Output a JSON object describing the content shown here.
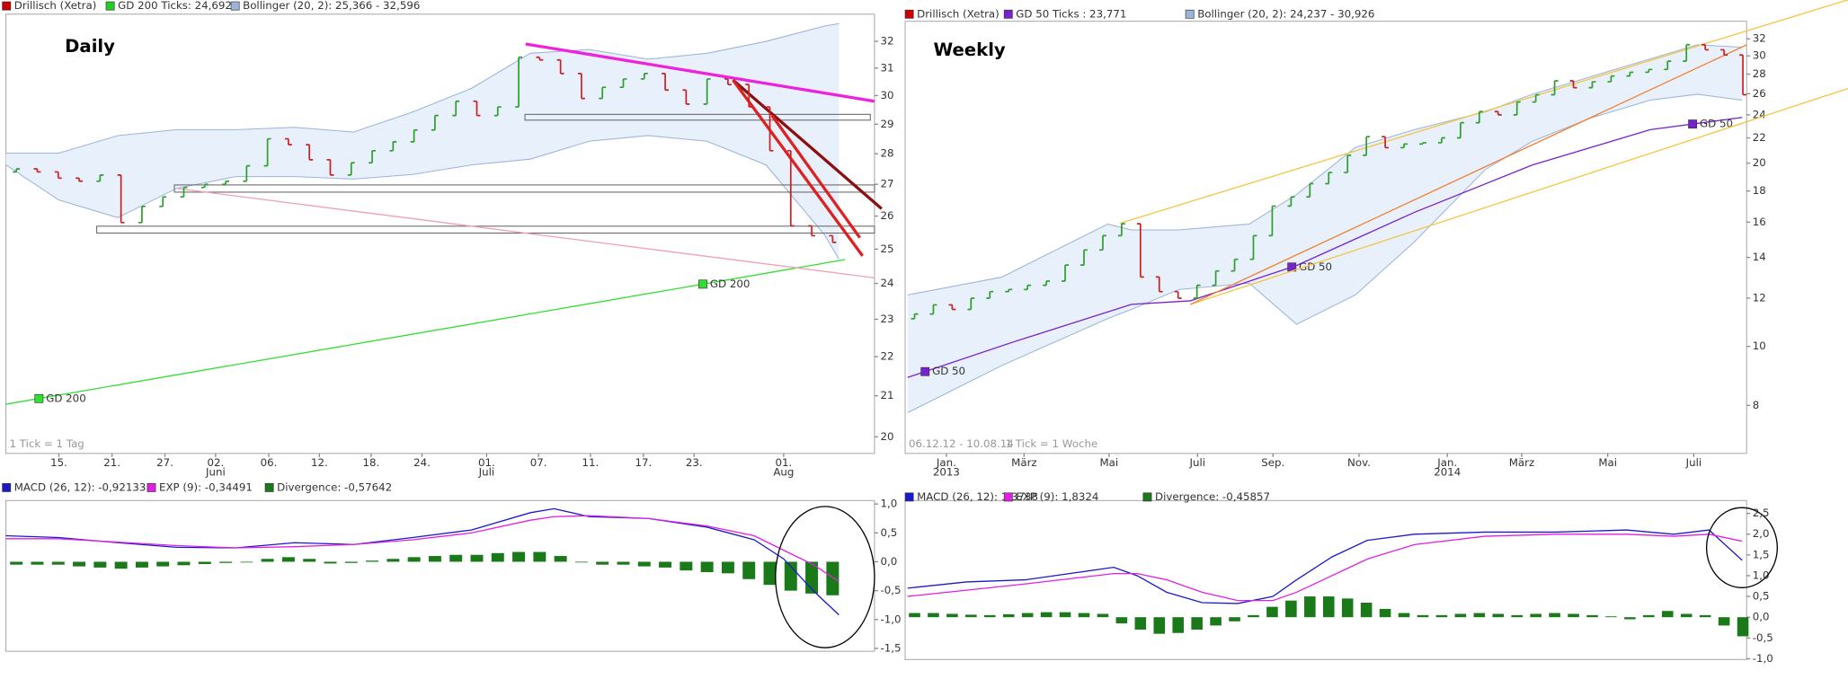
{
  "chart_data": [
    {
      "type": "ohlc",
      "title": "Daily",
      "log": true,
      "legend": [
        {
          "name": "Drillisch (Xetra)",
          "color": "#cc0000"
        },
        {
          "name": "GD 200 Ticks: 24,692",
          "color": "#22cc22"
        },
        {
          "name": "Bollinger (20, 2): 25,366 - 32,596",
          "color": "#9bb5d9"
        }
      ],
      "ylim": [
        19.61,
        33.05
      ],
      "yticks": [
        20,
        21,
        22,
        23,
        24,
        25,
        26,
        27,
        28,
        29,
        30,
        31,
        32
      ],
      "xlim": [
        -0.5,
        41
      ],
      "xticks": [
        {
          "value": 2.03,
          "label": "15."
        },
        {
          "value": 4.57,
          "label": "21."
        },
        {
          "value": 7.1,
          "label": "27."
        },
        {
          "value": 9.52,
          "label": "02.",
          "sublabel": "Juni"
        },
        {
          "value": 12.06,
          "label": "06."
        },
        {
          "value": 14.48,
          "label": "12."
        },
        {
          "value": 16.95,
          "label": "18."
        },
        {
          "value": 19.38,
          "label": "24."
        },
        {
          "value": 22.47,
          "label": "01.",
          "sublabel": "Juli"
        },
        {
          "value": 24.95,
          "label": "07."
        },
        {
          "value": 27.43,
          "label": "11."
        },
        {
          "value": 29.96,
          "label": "17."
        },
        {
          "value": 32.38,
          "label": "23."
        },
        {
          "value": 36.66,
          "label": "01.",
          "sublabel": "Aug"
        }
      ],
      "up_color": "#2e9e2e",
      "down_color": "#cc2020",
      "open": [
        27.4,
        27.5,
        27.4,
        27.2,
        27.1,
        27.3,
        25.8,
        26.3,
        26.6,
        26.9,
        27.0,
        27.1,
        27.6,
        28.5,
        28.3,
        27.8,
        27.3,
        27.7,
        28.1,
        28.4,
        28.8,
        29.3,
        29.8,
        29.3,
        29.6,
        31.4,
        31.3,
        30.8,
        29.9,
        30.3,
        30.6,
        30.8,
        30.2,
        29.7,
        30.6,
        30.4,
        29.6,
        28.1,
        25.7,
        25.4
      ],
      "close": [
        27.5,
        27.4,
        27.2,
        27.1,
        27.3,
        25.8,
        26.3,
        26.6,
        26.9,
        27.0,
        27.1,
        27.6,
        28.5,
        28.3,
        27.8,
        27.3,
        27.7,
        28.1,
        28.4,
        28.8,
        29.3,
        29.8,
        29.3,
        29.6,
        31.4,
        31.3,
        30.8,
        29.9,
        30.3,
        30.6,
        30.8,
        30.2,
        29.7,
        30.6,
        30.4,
        29.6,
        28.1,
        25.7,
        25.4,
        25.2
      ],
      "band": {
        "color": "#9bb5d9",
        "fill": "#e8f0fb",
        "x": [
          -0.5,
          2.03,
          4.85,
          7.66,
          10.48,
          13.3,
          16.11,
          18.93,
          21.74,
          24.56,
          27.37,
          30.19,
          33.0,
          35.82,
          38.63,
          39.3
        ],
        "upper": [
          28.02,
          28.02,
          28.61,
          28.81,
          28.81,
          28.89,
          28.73,
          29.42,
          30.26,
          31.55,
          31.69,
          31.33,
          31.55,
          32.0,
          32.59,
          32.68
        ],
        "lower": [
          27.63,
          26.5,
          25.95,
          26.87,
          27.25,
          27.25,
          27.17,
          27.32,
          27.63,
          27.82,
          28.42,
          28.61,
          28.42,
          27.63,
          25.41,
          24.7
        ]
      },
      "lines": [
        {
          "color": "#33dd33",
          "x": [
            -0.5,
            39.6
          ],
          "values": [
            20.79,
            24.69
          ],
          "labels": [
            {
              "text": "GD 200",
              "x": 1.08
            },
            {
              "text": "GD 200",
              "x": 32.8
            }
          ]
        }
      ],
      "trendlines": [
        {
          "color": "#f0a0b0",
          "width": 1,
          "x": [
            7.66,
            41
          ],
          "values": [
            26.87,
            24.16
          ]
        },
        {
          "color": "#ee22dd",
          "width": 2.5,
          "x": [
            24.33,
            41
          ],
          "values": [
            31.9,
            29.8
          ]
        },
        {
          "color": "#8b1010",
          "width": 2.5,
          "x": [
            34.24,
            41.34
          ],
          "values": [
            30.56,
            26.23
          ]
        },
        {
          "color": "#dd2020",
          "width": 2.5,
          "x": [
            34.24,
            40.43
          ],
          "values": [
            30.56,
            24.8
          ]
        },
        {
          "color": "#dd2020",
          "width": 2.5,
          "x": [
            36.1,
            40.3
          ],
          "values": [
            29.3,
            25.34
          ]
        }
      ],
      "zones": [
        {
          "x": [
            24.3,
            40.8
          ],
          "values": [
            29.14,
            29.34
          ]
        },
        {
          "x": [
            7.55,
            41
          ],
          "values": [
            26.75,
            26.98
          ]
        },
        {
          "x": [
            3.84,
            41
          ],
          "values": [
            25.48,
            25.69
          ]
        }
      ],
      "footnotes": [
        "1 Tick = 1 Tag"
      ]
    },
    {
      "type": "macd",
      "legend": [
        {
          "name": "MACD (26, 12): -0,92133",
          "color": "#1a1acc"
        },
        {
          "name": "EXP (9): -0,34491",
          "color": "#e020e0"
        },
        {
          "name": "Divergence: -0,57642",
          "color": "#1a7a1a"
        }
      ],
      "ylim": [
        -1.55,
        1.06
      ],
      "yticks": [
        {
          "value": 1,
          "label": "1,0"
        },
        {
          "value": 0.5,
          "label": "0,5"
        },
        {
          "value": 0,
          "label": "0,0"
        },
        {
          "value": -0.5,
          "label": "-0,5"
        },
        {
          "value": -1,
          "label": "-1,0"
        },
        {
          "value": -1.5,
          "label": "-1,5"
        }
      ],
      "xlim": [
        -0.5,
        41
      ],
      "series": [
        {
          "color": "#1a1acc",
          "x": [
            -0.5,
            2.03,
            4.85,
            7.66,
            10.48,
            13.3,
            16.11,
            18.93,
            21.74,
            24.56,
            25.69,
            27.37,
            30.19,
            33.0,
            35.25,
            36.66,
            38.07,
            39.3
          ],
          "values": [
            0.45,
            0.42,
            0.33,
            0.25,
            0.24,
            0.33,
            0.3,
            0.42,
            0.55,
            0.85,
            0.92,
            0.78,
            0.75,
            0.6,
            0.38,
            0.05,
            -0.5,
            -0.92
          ]
        },
        {
          "color": "#e020e0",
          "x": [
            -0.5,
            2.03,
            4.85,
            7.66,
            10.48,
            13.3,
            16.11,
            18.93,
            21.74,
            24.56,
            25.69,
            27.37,
            30.19,
            33.0,
            35.25,
            36.66,
            38.07,
            39.3
          ],
          "values": [
            0.4,
            0.4,
            0.34,
            0.28,
            0.24,
            0.26,
            0.3,
            0.38,
            0.5,
            0.72,
            0.78,
            0.8,
            0.75,
            0.62,
            0.45,
            0.2,
            -0.05,
            -0.34
          ]
        }
      ],
      "bar_color": "#1a7a1a",
      "divergence": [
        -0.05,
        -0.05,
        -0.05,
        -0.08,
        -0.1,
        -0.12,
        -0.1,
        -0.08,
        -0.06,
        -0.04,
        -0.02,
        0.0,
        0.05,
        0.08,
        0.05,
        -0.03,
        -0.02,
        0.02,
        0.05,
        0.08,
        0.1,
        0.12,
        0.12,
        0.15,
        0.17,
        0.17,
        0.1,
        0.0,
        -0.05,
        -0.05,
        -0.08,
        -0.1,
        -0.15,
        -0.18,
        -0.2,
        -0.3,
        -0.4,
        -0.5,
        -0.55,
        -0.58
      ]
    },
    {
      "type": "ohlc",
      "title": "Weekly",
      "log": true,
      "legend": [
        {
          "name": "Drillisch (Xetra)",
          "color": "#cc0000"
        },
        {
          "name": "GD 50 Ticks  : 23,771",
          "color": "#7722cc"
        },
        {
          "name": "Bollinger (20, 2): 24,237 - 30,926",
          "color": "#9bb5d9"
        }
      ],
      "ylim": [
        6.67,
        34.2
      ],
      "yticks": [
        8,
        10,
        12,
        14,
        16,
        18,
        20,
        22,
        24,
        26,
        28,
        30,
        32
      ],
      "xlim": [
        -0.5,
        44.2
      ],
      "xticks": [
        {
          "value": 1.69,
          "label": "Jan.",
          "sublabel": "2013"
        },
        {
          "value": 5.82,
          "label": "März"
        },
        {
          "value": 10.33,
          "label": "Mai"
        },
        {
          "value": 15.03,
          "label": "Juli"
        },
        {
          "value": 19.04,
          "label": "Sep."
        },
        {
          "value": 23.61,
          "label": "Nov."
        },
        {
          "value": 28.3,
          "label": "Jan.",
          "sublabel": "2014"
        },
        {
          "value": 32.25,
          "label": "März"
        },
        {
          "value": 36.82,
          "label": "Mai"
        },
        {
          "value": 41.39,
          "label": "Juli"
        }
      ],
      "up_color": "#2e9e2e",
      "down_color": "#cc2020",
      "open": [
        11.1,
        11.3,
        11.7,
        11.5,
        12.0,
        12.3,
        12.4,
        12.6,
        12.8,
        13.6,
        14.4,
        15.2,
        15.9,
        13.0,
        12.3,
        12.0,
        12.6,
        13.3,
        13.9,
        15.2,
        17.0,
        17.6,
        18.5,
        19.3,
        20.6,
        22.1,
        21.2,
        21.5,
        21.6,
        22.0,
        23.3,
        24.3,
        24.0,
        25.2,
        25.9,
        27.3,
        26.6,
        27.2,
        27.8,
        28.2,
        28.5,
        29.4,
        31.3,
        30.7,
        30.1
      ],
      "close": [
        11.3,
        11.7,
        11.5,
        12.0,
        12.3,
        12.4,
        12.6,
        12.8,
        13.6,
        14.4,
        15.2,
        15.9,
        13.0,
        12.3,
        12.0,
        12.6,
        13.3,
        13.9,
        15.2,
        17.0,
        17.6,
        18.5,
        19.3,
        20.6,
        22.1,
        21.2,
        21.5,
        21.6,
        22.0,
        23.3,
        24.3,
        24.0,
        25.2,
        25.9,
        27.3,
        26.6,
        27.2,
        27.8,
        28.2,
        28.5,
        29.4,
        31.3,
        30.7,
        30.1,
        25.9
      ],
      "band": {
        "color": "#9bb5d9",
        "fill": "#e8f0fb",
        "x": [
          -0.37,
          4.63,
          10.27,
          11.52,
          14.03,
          17.78,
          20.29,
          23.42,
          26.55,
          30.31,
          32.81,
          35.94,
          39.07,
          41.58,
          43.96
        ],
        "upper": [
          12.15,
          12.99,
          15.88,
          15.53,
          15.53,
          15.88,
          17.76,
          21.23,
          22.69,
          24.27,
          25.95,
          27.74,
          29.66,
          31.29,
          31.0
        ],
        "lower": [
          7.78,
          9.3,
          11.11,
          11.5,
          12.4,
          12.7,
          10.87,
          12.15,
          14.85,
          19.5,
          21.71,
          23.73,
          25.38,
          25.95,
          25.38
        ]
      },
      "lines": [
        {
          "color": "#7722cc",
          "x": [
            -0.37,
            5.26,
            11.52,
            14.65,
            20.29,
            26.55,
            32.81,
            39.07,
            43.96
          ],
          "values": [
            8.89,
            10.17,
            11.72,
            11.88,
            13.58,
            16.6,
            19.85,
            22.69,
            23.77
          ],
          "labels": [
            {
              "text": "GD 50",
              "x": 0.56
            },
            {
              "text": "GD 50",
              "x": 20.04
            },
            {
              "text": "GD 50",
              "x": 41.33
            }
          ]
        }
      ],
      "trendlines": [
        {
          "color": "#f5c542",
          "width": 1,
          "x": [
            10.9,
            49.6
          ],
          "values": [
            15.93,
            37.1
          ]
        },
        {
          "color": "#f5c542",
          "width": 1,
          "x": [
            14.65,
            49.6
          ],
          "values": [
            11.72,
            26.53
          ]
        },
        {
          "color": "#f08030",
          "width": 1,
          "x": [
            14.65,
            44.21
          ],
          "values": [
            11.72,
            31.29
          ]
        }
      ],
      "zones": [],
      "footnotes": [
        "06.12.12 - 10.08.14",
        "1 Tick = 1 Woche"
      ]
    },
    {
      "type": "macd",
      "legend": [
        {
          "name": "MACD (26, 12): 1,3738",
          "color": "#1a1acc"
        },
        {
          "name": "EXP (9): 1,8324",
          "color": "#e020e0"
        },
        {
          "name": "Divergence: -0,45857",
          "color": "#1a7a1a"
        }
      ],
      "ylim": [
        -1.02,
        2.81
      ],
      "yticks": [
        {
          "value": 2.5,
          "label": "2,5"
        },
        {
          "value": 2,
          "label": "2,0"
        },
        {
          "value": 1.5,
          "label": "1,5"
        },
        {
          "value": 1,
          "label": "1,0"
        },
        {
          "value": 0.5,
          "label": "0,5"
        },
        {
          "value": 0,
          "label": "0,0"
        },
        {
          "value": -0.5,
          "label": "-0,5"
        },
        {
          "value": -1,
          "label": "-1,0"
        }
      ],
      "xlim": [
        -0.5,
        44.2
      ],
      "series": [
        {
          "color": "#1a1acc",
          "x": [
            -0.37,
            2.76,
            5.89,
            10.58,
            11.83,
            13.4,
            15.28,
            17.16,
            19.04,
            20.29,
            22.17,
            24.05,
            26.55,
            30.31,
            34.06,
            37.82,
            40.32,
            42.2,
            43.96
          ],
          "values": [
            0.7,
            0.85,
            0.9,
            1.2,
            1.0,
            0.6,
            0.35,
            0.33,
            0.5,
            0.9,
            1.45,
            1.85,
            2.0,
            2.05,
            2.05,
            2.1,
            2.0,
            2.1,
            1.37
          ]
        },
        {
          "color": "#e020e0",
          "x": [
            -0.37,
            2.76,
            5.89,
            10.58,
            11.83,
            13.4,
            15.28,
            17.16,
            19.04,
            20.29,
            22.17,
            24.05,
            26.55,
            30.31,
            34.06,
            37.82,
            40.32,
            42.2,
            43.96
          ],
          "values": [
            0.5,
            0.65,
            0.8,
            1.05,
            1.05,
            0.9,
            0.6,
            0.4,
            0.4,
            0.6,
            1.0,
            1.4,
            1.75,
            1.95,
            2.0,
            2.0,
            1.95,
            2.0,
            1.83
          ]
        }
      ],
      "bar_color": "#1a7a1a",
      "divergence": [
        0.1,
        0.1,
        0.08,
        0.06,
        0.05,
        0.07,
        0.1,
        0.12,
        0.12,
        0.1,
        0.08,
        -0.15,
        -0.3,
        -0.4,
        -0.38,
        -0.3,
        -0.2,
        -0.1,
        0.05,
        0.25,
        0.4,
        0.5,
        0.5,
        0.45,
        0.35,
        0.2,
        0.1,
        0.05,
        0.05,
        0.08,
        0.1,
        0.08,
        0.05,
        0.08,
        0.1,
        0.08,
        0.05,
        0.02,
        -0.05,
        0.05,
        0.15,
        0.08,
        0.05,
        -0.2,
        -0.46
      ]
    }
  ]
}
